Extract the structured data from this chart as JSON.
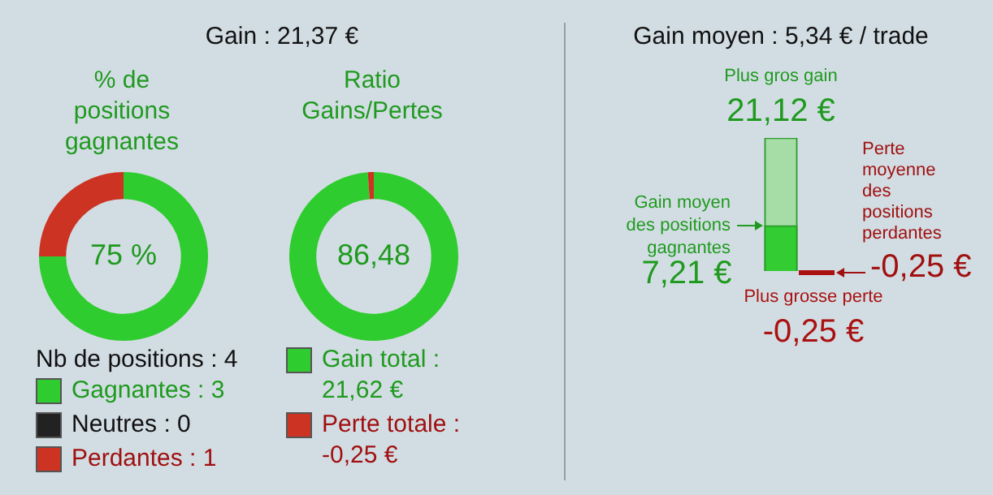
{
  "chart_data": [
    {
      "type": "other",
      "title": "Gain : 21,37 €"
    },
    {
      "type": "donut",
      "title": "% de positions gagnantes",
      "categories": [
        "Gagnantes : 3",
        "Neutres : 0",
        "Perdantes : 1"
      ],
      "values": [
        3,
        0,
        1
      ],
      "colors": [
        "#2fcc2f",
        "#222222",
        "#cc3322"
      ],
      "legend": "bottom",
      "legend_title": "Nb de positions : 4",
      "annotations": [
        "75 %"
      ]
    },
    {
      "type": "donut",
      "title": "Ratio Gains/Pertes",
      "categories": [
        "Gain total : 21,62 €",
        "Perte totale : -0,25 €"
      ],
      "values": [
        21.62,
        0.25
      ],
      "colors": [
        "#2fcc2f",
        "#cc3322"
      ],
      "legend": "bottom",
      "annotations": [
        "86,48"
      ]
    },
    {
      "type": "other",
      "title": "Gain moyen : 5,34 € / trade",
      "categories": [
        "Plus gros gain",
        "Gain moyen des positions gagnantes",
        "Perte moyenne des positions perdantes",
        "Plus grosse perte"
      ],
      "values": [
        21.12,
        7.21,
        -0.25,
        -0.25
      ],
      "colors": [
        "#a6dca6",
        "#33cc33",
        "#aa1111",
        "#aa1111"
      ],
      "value_labels": [
        "21,12 €",
        "7,21 €",
        "-0,25 €",
        "-0,25 €"
      ]
    }
  ]
}
